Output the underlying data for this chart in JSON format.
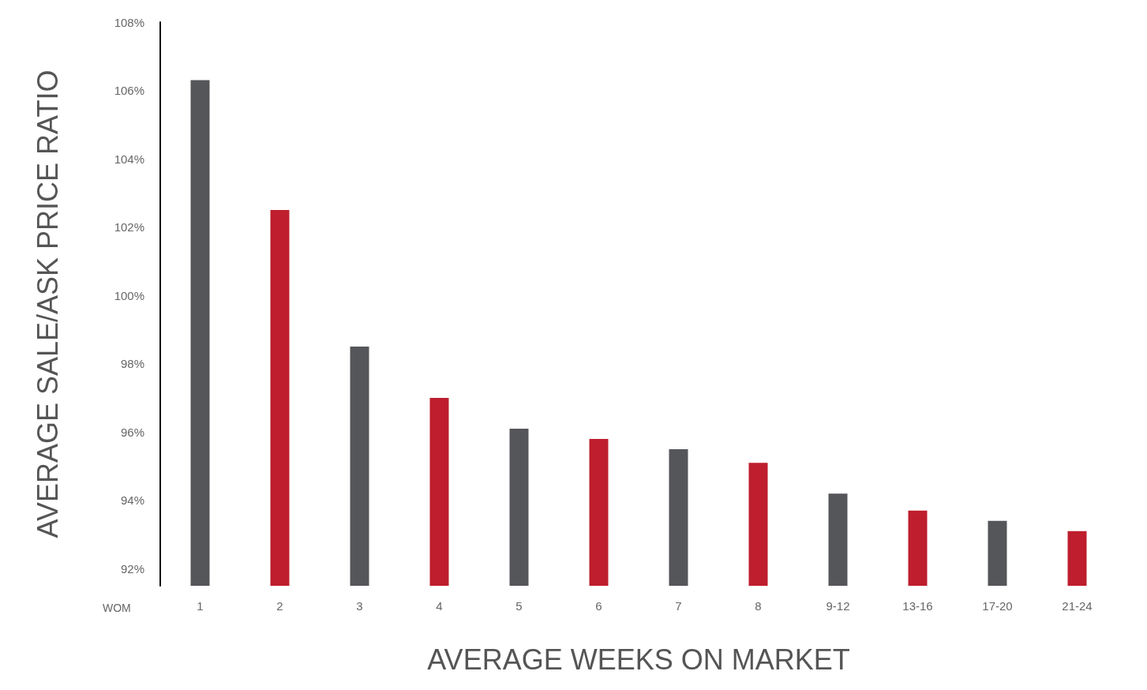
{
  "chart_data": {
    "type": "bar",
    "xlabel": "AVERAGE WEEKS ON MARKET",
    "ylabel": "AVERAGE SALE/ASK PRICE RATIO",
    "annotations": [
      "WOM"
    ],
    "categories": [
      "1",
      "2",
      "3",
      "4",
      "5",
      "6",
      "7",
      "8",
      "9-12",
      "13-16",
      "17-20",
      "21-24"
    ],
    "values": [
      106.3,
      102.5,
      98.5,
      97.0,
      96.1,
      95.8,
      95.5,
      95.1,
      94.2,
      93.7,
      93.4,
      93.1
    ],
    "colors": [
      "#555659",
      "#be1e2d",
      "#555659",
      "#be1e2d",
      "#555659",
      "#be1e2d",
      "#555659",
      "#be1e2d",
      "#555659",
      "#be1e2d",
      "#555659",
      "#be1e2d"
    ],
    "ylim": [
      91.5,
      108
    ],
    "yticks": [
      {
        "value": 92,
        "label": "92%"
      },
      {
        "value": 94,
        "label": "94%"
      },
      {
        "value": 96,
        "label": "96%"
      },
      {
        "value": 98,
        "label": "98%"
      },
      {
        "value": 100,
        "label": "100%"
      },
      {
        "value": 102,
        "label": "102%"
      },
      {
        "value": 104,
        "label": "104%"
      },
      {
        "value": 106,
        "label": "106%"
      },
      {
        "value": 108,
        "label": "108%"
      }
    ],
    "grid": false
  }
}
